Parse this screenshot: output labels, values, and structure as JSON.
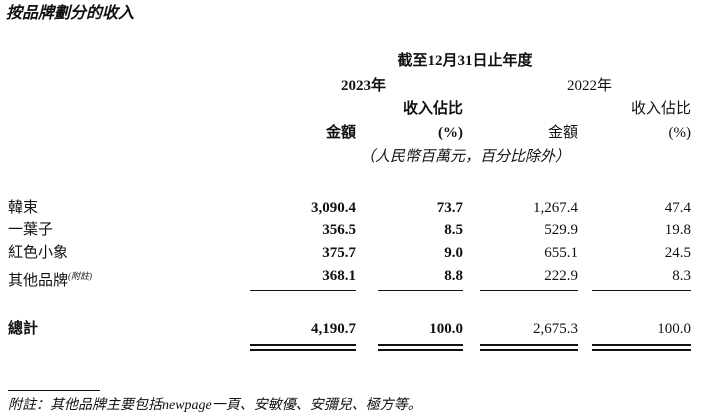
{
  "title": "按品牌劃分的收入",
  "header": {
    "period": "截至12月31日止年度",
    "years": [
      "2023年",
      "2022年"
    ],
    "columns": [
      {
        "lines": [
          "金額"
        ]
      },
      {
        "lines": [
          "收入佔比",
          "(%)"
        ]
      },
      {
        "lines": [
          "金額"
        ]
      },
      {
        "lines": [
          "收入佔比",
          "(%)"
        ]
      }
    ],
    "unit": "（人民幣百萬元，百分比除外）"
  },
  "table": {
    "rows": [
      {
        "name": "韓束",
        "cells": [
          "3,090.4",
          "73.7",
          "1,267.4",
          "47.4"
        ]
      },
      {
        "name": "一葉子",
        "cells": [
          "356.5",
          "8.5",
          "529.9",
          "19.8"
        ]
      },
      {
        "name": "紅色小象",
        "cells": [
          "375.7",
          "9.0",
          "655.1",
          "24.5"
        ]
      },
      {
        "name": "其他品牌",
        "note": "(附註)",
        "cells": [
          "368.1",
          "8.8",
          "222.9",
          "8.3"
        ]
      }
    ],
    "total": {
      "name": "總計",
      "cells": [
        "4,190.7",
        "100.0",
        "2,675.3",
        "100.0"
      ]
    }
  },
  "footnote": "附註：其他品牌主要包括newpage一頁、安敏優、安彌兒、極方等。"
}
